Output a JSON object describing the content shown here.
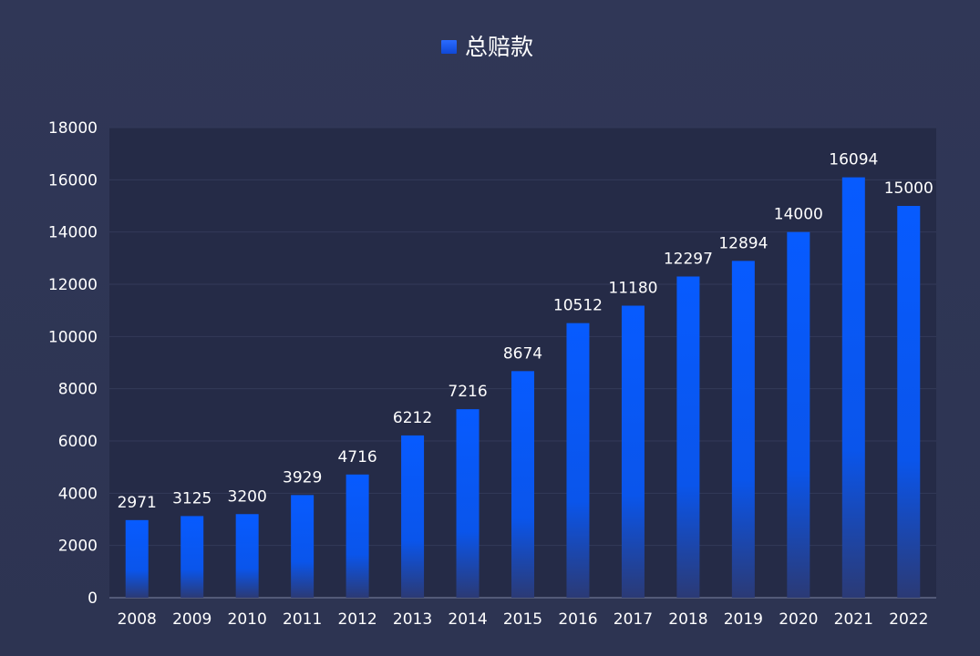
{
  "chart_data": {
    "type": "bar",
    "categories": [
      "2008",
      "2009",
      "2010",
      "2011",
      "2012",
      "2013",
      "2014",
      "2015",
      "2016",
      "2017",
      "2018",
      "2019",
      "2020",
      "2021",
      "2022"
    ],
    "series": [
      {
        "name": "总赔款",
        "values": [
          2971,
          3125,
          3200,
          3929,
          4716,
          6212,
          7216,
          8674,
          10512,
          11180,
          12297,
          12894,
          14000,
          16094,
          15000
        ]
      }
    ],
    "ylim": [
      0,
      18000
    ],
    "yticks": [
      0,
      2000,
      4000,
      6000,
      8000,
      10000,
      12000,
      14000,
      16000,
      18000
    ],
    "grid": true,
    "legend_position": "top-center",
    "colors": {
      "bar_top": "#0a5cff",
      "bar_bottom": "#2a3a7a",
      "plot_background": "#252b47",
      "page_background": "#2f3655",
      "grid": "#333a59",
      "text": "#ffffff"
    }
  }
}
